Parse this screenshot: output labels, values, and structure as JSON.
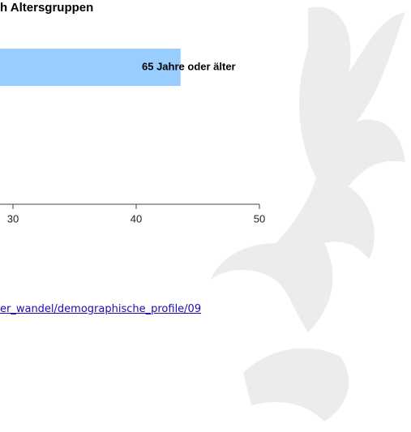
{
  "chart_data": {
    "type": "bar",
    "orientation": "horizontal",
    "title": "h Altersgruppen",
    "categories": [
      "65 Jahre oder älter"
    ],
    "values": [
      43.6
    ],
    "color": "#99ccff",
    "xlim": [
      0,
      50
    ],
    "xticks": [
      30,
      40,
      50
    ]
  },
  "link": "er_wandel/demographische_profile/09"
}
